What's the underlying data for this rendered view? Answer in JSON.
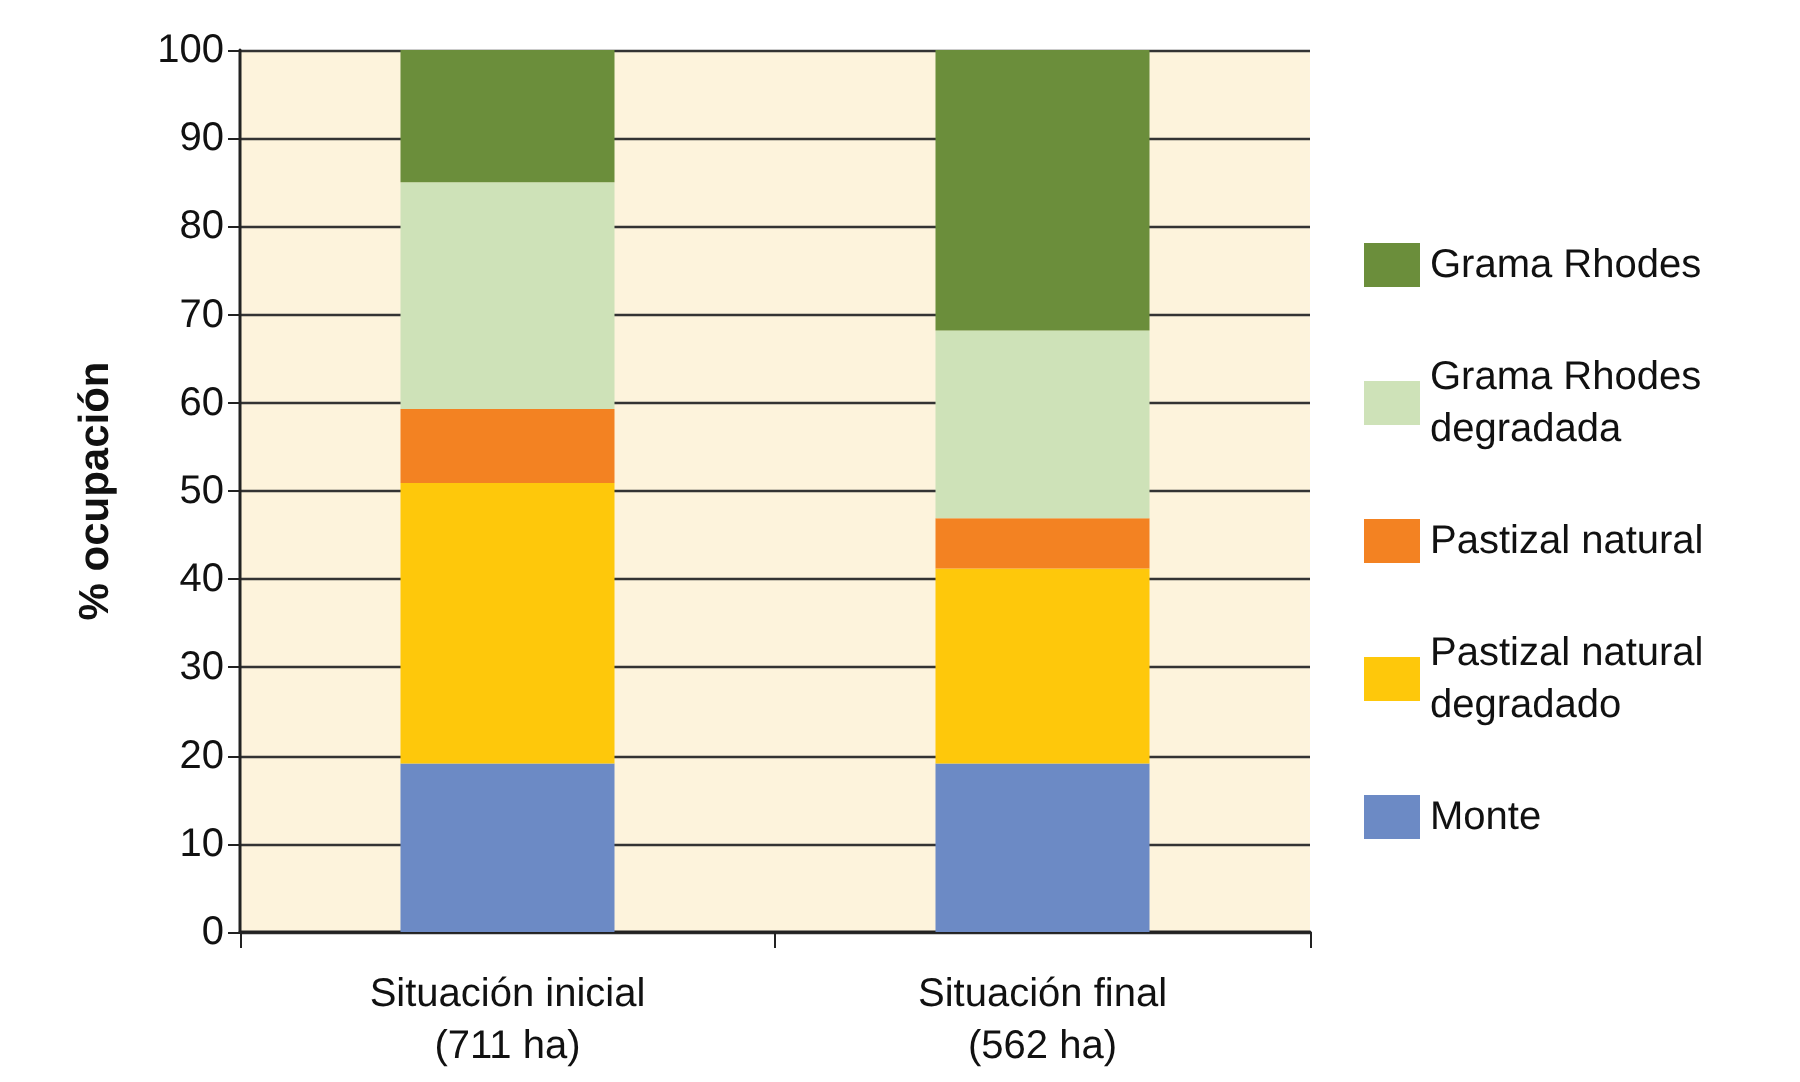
{
  "chart_data": {
    "type": "bar",
    "stacked": true,
    "ylabel": "% ocupación",
    "categories": [
      "Situación inicial\n(711 ha)",
      "Situación final\n(562 ha)"
    ],
    "series": [
      {
        "name": "Monte",
        "color": "#6c8ac5",
        "values": [
          19.1,
          19.1
        ]
      },
      {
        "name": "Pastizal natural degradado",
        "color": "#fec80b",
        "values": [
          31.8,
          22.1
        ]
      },
      {
        "name": "Pastizal natural",
        "color": "#f38222",
        "values": [
          8.4,
          5.7
        ]
      },
      {
        "name": "Grama Rhodes degradada",
        "color": "#cee2b8",
        "values": [
          25.7,
          21.3
        ]
      },
      {
        "name": "Grama Rhodes",
        "color": "#6b8e3b",
        "values": [
          15.0,
          31.8
        ]
      }
    ],
    "ylim": [
      0,
      100
    ],
    "yticks": [
      0,
      10,
      20,
      30,
      40,
      50,
      60,
      70,
      80,
      90,
      100
    ],
    "grid": "y",
    "legend": "right"
  }
}
